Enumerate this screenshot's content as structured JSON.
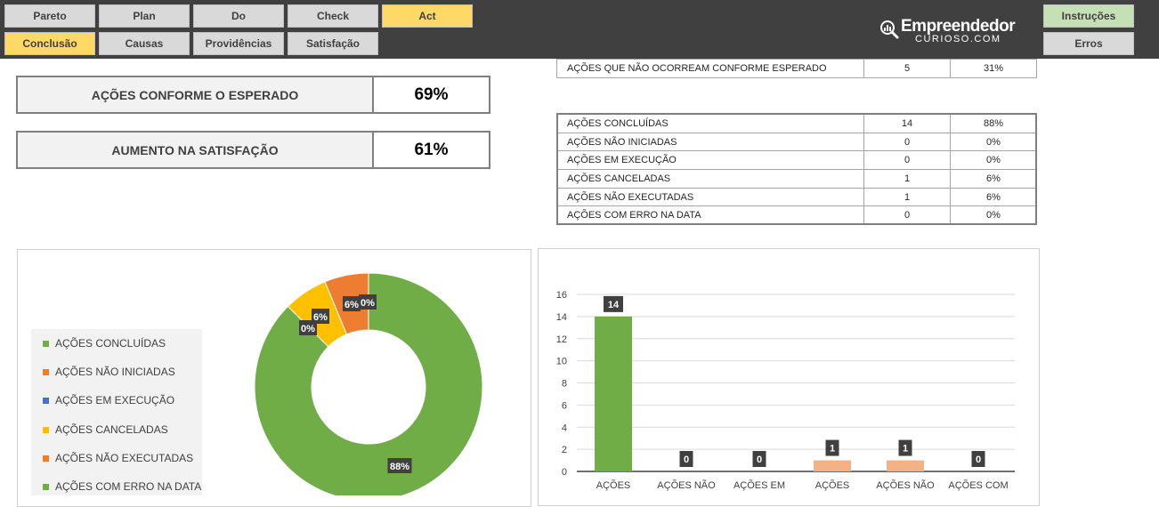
{
  "nav": {
    "row1": [
      {
        "label": "Pareto",
        "active": false
      },
      {
        "label": "Plan",
        "active": false
      },
      {
        "label": "Do",
        "active": false
      },
      {
        "label": "Check",
        "active": false
      },
      {
        "label": "Act",
        "active": true
      }
    ],
    "row2": [
      {
        "label": "Conclusão",
        "active": true
      },
      {
        "label": "Causas",
        "active": false
      },
      {
        "label": "Providências",
        "active": false
      },
      {
        "label": "Satisfação",
        "active": false
      }
    ],
    "right": [
      {
        "label": "Instruções"
      },
      {
        "label": "Erros"
      }
    ]
  },
  "logo": {
    "brand": "Empreendedor",
    "sub": "CURIOSO.COM"
  },
  "kpis": [
    {
      "label": "AÇÕES CONFORME O ESPERADO",
      "value": "69%"
    },
    {
      "label": "AUMENTO NA SATISFAÇÃO",
      "value": "61%"
    }
  ],
  "top_table": [
    {
      "label": "AÇÕES QUE NÃO OCORREAM CONFORME ESPERADO",
      "count": "5",
      "pct": "31%"
    }
  ],
  "status_table": [
    {
      "label": "AÇÕES CONCLUÍDAS",
      "count": "14",
      "pct": "88%"
    },
    {
      "label": "AÇÕES NÃO INICIADAS",
      "count": "0",
      "pct": "0%"
    },
    {
      "label": "AÇÕES EM EXECUÇÃO",
      "count": "0",
      "pct": "0%"
    },
    {
      "label": "AÇÕES CANCELADAS",
      "count": "1",
      "pct": "6%"
    },
    {
      "label": "AÇÕES NÃO EXECUTADAS",
      "count": "1",
      "pct": "6%"
    },
    {
      "label": "AÇÕES COM ERRO NA DATA",
      "count": "0",
      "pct": "0%"
    }
  ],
  "colors": {
    "green": "#70ad47",
    "orange": "#ed7d31",
    "blue": "#4472c4",
    "gold": "#ffc000",
    "light_orange": "#f4b183",
    "label_bg": "#404040"
  },
  "chart_data": [
    {
      "type": "pie",
      "variant": "donut",
      "legend_position": "left",
      "legend": [
        {
          "name": "AÇÕES CONCLUÍDAS",
          "color": "#70ad47"
        },
        {
          "name": "AÇÕES NÃO INICIADAS",
          "color": "#ed7d31"
        },
        {
          "name": "AÇÕES EM EXECUÇÃO",
          "color": "#4472c4"
        },
        {
          "name": "AÇÕES CANCELADAS",
          "color": "#ffc000"
        },
        {
          "name": "AÇÕES NÃO EXECUTADAS",
          "color": "#ed7d31"
        },
        {
          "name": "AÇÕES COM ERRO NA DATA",
          "color": "#70ad47"
        }
      ],
      "slices": [
        {
          "name": "AÇÕES CONCLUÍDAS",
          "value": 14,
          "label": "88%",
          "color": "#70ad47"
        },
        {
          "name": "AÇÕES NÃO INICIADAS",
          "value": 0,
          "label": "0%",
          "color": "#ed7d31"
        },
        {
          "name": "AÇÕES EM EXECUÇÃO",
          "value": 0,
          "label": "0%",
          "color": "#4472c4"
        },
        {
          "name": "AÇÕES CANCELADAS",
          "value": 1,
          "label": "6%",
          "color": "#ffc000"
        },
        {
          "name": "AÇÕES NÃO EXECUTADAS",
          "value": 1,
          "label": "6%",
          "color": "#ed7d31"
        },
        {
          "name": "AÇÕES COM ERRO NA DATA",
          "value": 0,
          "label": "0%",
          "color": "#70ad47"
        }
      ]
    },
    {
      "type": "bar",
      "categories": [
        "AÇÕES",
        "AÇÕES NÃO",
        "AÇÕES EM",
        "AÇÕES",
        "AÇÕES NÃO",
        "AÇÕES COM"
      ],
      "values": [
        14,
        0,
        0,
        1,
        1,
        0
      ],
      "bar_colors": [
        "#70ad47",
        "#70ad47",
        "#70ad47",
        "#f4b183",
        "#f4b183",
        "#70ad47"
      ],
      "ylim": [
        0,
        16
      ],
      "yticks": [
        0,
        2,
        4,
        6,
        8,
        10,
        12,
        14,
        16
      ],
      "grid": true
    }
  ]
}
